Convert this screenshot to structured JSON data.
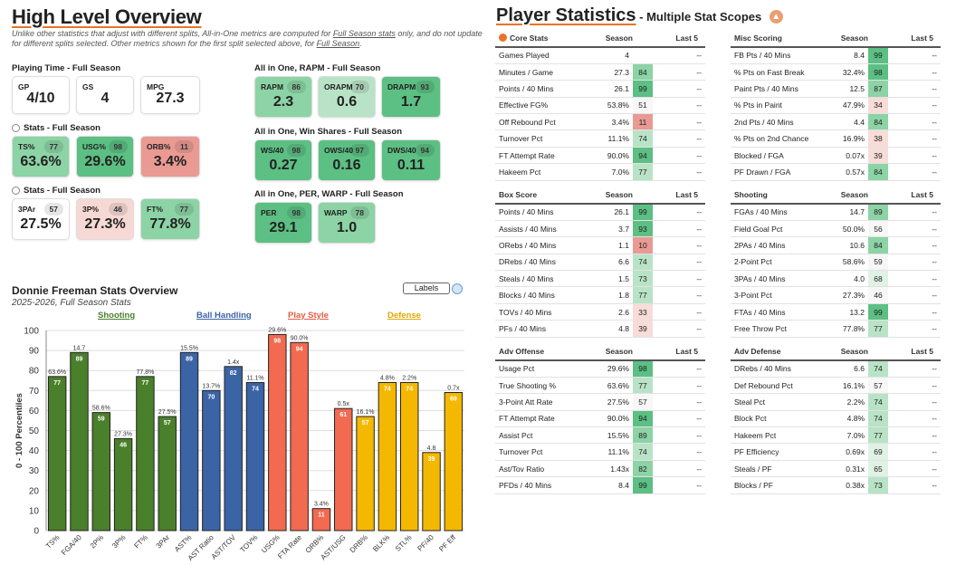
{
  "left": {
    "title": "High Level Overview",
    "note_a": "Unlike other statistics that adjust with different splits, All-in-One metrics are computed for ",
    "note_link1": "Full Season stats",
    "note_b": " only, and do not update",
    "note_c": "for different splits selected. Other metrics shown for the first split selected above, for ",
    "note_link2": "Full Season",
    "note_d": ".",
    "playing_time": {
      "title": "Playing Time - Full Season",
      "cards": [
        {
          "label": "GP",
          "value": "4/10"
        },
        {
          "label": "GS",
          "value": "4"
        },
        {
          "label": "MPG",
          "value": "27.3"
        }
      ]
    },
    "stats1": {
      "title": "Stats - Full Season",
      "cards": [
        {
          "label": "TS%",
          "pct": "77",
          "value": "63.6%"
        },
        {
          "label": "USG%",
          "pct": "98",
          "value": "29.6%"
        },
        {
          "label": "ORB%",
          "pct": "11",
          "value": "3.4%"
        }
      ]
    },
    "stats2": {
      "title": "Stats - Full Season",
      "cards": [
        {
          "label": "3PAr",
          "pct": "57",
          "value": "27.5%"
        },
        {
          "label": "3P%",
          "pct": "46",
          "value": "27.3%"
        },
        {
          "label": "FT%",
          "pct": "77",
          "value": "77.8%"
        }
      ]
    },
    "rapm": {
      "title": "All in One, RAPM - Full Season",
      "cards": [
        {
          "label": "RAPM",
          "pct": "86",
          "value": "2.3"
        },
        {
          "label": "ORAPM",
          "pct": "70",
          "value": "0.6"
        },
        {
          "label": "DRAPM",
          "pct": "93",
          "value": "1.7"
        }
      ]
    },
    "ws": {
      "title": "All in One, Win Shares - Full Season",
      "cards": [
        {
          "label": "WS/40",
          "pct": "98",
          "value": "0.27"
        },
        {
          "label": "OWS/40",
          "pct": "97",
          "value": "0.16"
        },
        {
          "label": "DWS/40",
          "pct": "94",
          "value": "0.11"
        }
      ]
    },
    "per": {
      "title": "All in One, PER, WARP - Full Season",
      "cards": [
        {
          "label": "PER",
          "pct": "98",
          "value": "29.1"
        },
        {
          "label": "WARP",
          "pct": "78",
          "value": "1.0"
        }
      ]
    }
  },
  "chart_header": {
    "title": "Donnie Freeman Stats Overview",
    "subtitle": "2025-2026, Full Season Stats",
    "labels_button": "Labels",
    "legend": [
      "Shooting",
      "Ball Handling",
      "Play Style",
      "Defense"
    ]
  },
  "chart_data": {
    "type": "bar",
    "title": "Donnie Freeman Stats Overview",
    "ylabel": "0 - 100 Percentiles",
    "ylim": [
      0,
      100
    ],
    "yticks": [
      "0",
      "10",
      "20",
      "30",
      "40",
      "50",
      "60",
      "70",
      "80",
      "90",
      "100"
    ],
    "categories": [
      "TS%",
      "FGA/40",
      "2P%",
      "3P%",
      "FT%",
      "3PAr",
      "AST%",
      "AST Ratio",
      "AST/TOV",
      "TOV%",
      "USG%",
      "FTA Rate",
      "ORB%",
      "AST/USG",
      "DRB%",
      "BLK%",
      "STL%",
      "PF/40",
      "PF Eff"
    ],
    "values": [
      77,
      89,
      59,
      46,
      77,
      57,
      89,
      70,
      82,
      74,
      98,
      94,
      11,
      61,
      57,
      74,
      74,
      39,
      69
    ],
    "raw_labels": [
      "63.6%",
      "14.7",
      "58.6%",
      "27.3%",
      "77.8%",
      "27.5%",
      "15.5%",
      "13.7%",
      "1.4x",
      "11.1%",
      "29.6%",
      "90.0%",
      "3.4%",
      "0.5x",
      "16.1%",
      "4.8%",
      "2.2%",
      "4.8",
      "0.7x"
    ],
    "groups": [
      "Shooting",
      "Shooting",
      "Shooting",
      "Shooting",
      "Shooting",
      "Shooting",
      "Ball Handling",
      "Ball Handling",
      "Ball Handling",
      "Ball Handling",
      "Play Style",
      "Play Style",
      "Play Style",
      "Play Style",
      "Defense",
      "Defense",
      "Defense",
      "Defense",
      "Defense"
    ],
    "colors": {
      "Shooting": "#4a7f2b",
      "Ball Handling": "#3b64a6",
      "Play Style": "#f26a4f",
      "Defense": "#f5b800"
    }
  },
  "right": {
    "title": "Player Statistics",
    "subtitle": " - Multiple Stat Scopes",
    "tables": [
      {
        "name": "Core Stats",
        "h2": "Season",
        "h3": "Last 5",
        "rows": [
          [
            "Games Played",
            "4",
            "",
            "--"
          ],
          [
            "Minutes / Game",
            "27.3",
            "84",
            "--"
          ],
          [
            "Points / 40 Mins",
            "26.1",
            "99",
            "--"
          ],
          [
            "Effective FG%",
            "53.8%",
            "51",
            "--"
          ],
          [
            "Off Rebound Pct",
            "3.4%",
            "11",
            "--"
          ],
          [
            "Turnover Pct",
            "11.1%",
            "74",
            "--"
          ],
          [
            "FT Attempt Rate",
            "90.0%",
            "94",
            "--"
          ],
          [
            "Hakeem Pct",
            "7.0%",
            "77",
            "--"
          ]
        ]
      },
      {
        "name": "Misc Scoring",
        "h2": "Season",
        "h3": "Last 5",
        "rows": [
          [
            "FB Pts / 40 Mins",
            "8.4",
            "99",
            "--"
          ],
          [
            "% Pts on Fast Break",
            "32.4%",
            "98",
            "--"
          ],
          [
            "Paint Pts / 40 Mins",
            "12.5",
            "87",
            "--"
          ],
          [
            "% Pts in Paint",
            "47.9%",
            "34",
            "--"
          ],
          [
            "2nd Pts / 40 Mins",
            "4.4",
            "84",
            "--"
          ],
          [
            "% Pts on 2nd Chance",
            "16.9%",
            "38",
            "--"
          ],
          [
            "Blocked / FGA",
            "0.07x",
            "39",
            "--"
          ],
          [
            "PF Drawn / FGA",
            "0.57x",
            "84",
            "--"
          ]
        ]
      },
      {
        "name": "Box Score",
        "h2": "Season",
        "h3": "Last 5",
        "rows": [
          [
            "Points / 40 Mins",
            "26.1",
            "99",
            "--"
          ],
          [
            "Assists / 40 Mins",
            "3.7",
            "93",
            "--"
          ],
          [
            "ORebs / 40 Mins",
            "1.1",
            "10",
            "--"
          ],
          [
            "DRebs / 40 Mins",
            "6.6",
            "74",
            "--"
          ],
          [
            "Steals / 40 Mins",
            "1.5",
            "73",
            "--"
          ],
          [
            "Blocks / 40 Mins",
            "1.8",
            "77",
            "--"
          ],
          [
            "TOVs / 40 Mins",
            "2.6",
            "33",
            "--"
          ],
          [
            "PFs / 40 Mins",
            "4.8",
            "39",
            "--"
          ]
        ]
      },
      {
        "name": "Shooting",
        "h2": "Season",
        "h3": "Last 5",
        "rows": [
          [
            "FGAs / 40 Mins",
            "14.7",
            "89",
            "--"
          ],
          [
            "Field Goal Pct",
            "50.0%",
            "56",
            "--"
          ],
          [
            "2PAs / 40 Mins",
            "10.6",
            "84",
            "--"
          ],
          [
            "2-Point Pct",
            "58.6%",
            "59",
            "--"
          ],
          [
            "3PAs / 40 Mins",
            "4.0",
            "68",
            "--"
          ],
          [
            "3-Point Pct",
            "27.3%",
            "46",
            "--"
          ],
          [
            "FTAs / 40 Mins",
            "13.2",
            "99",
            "--"
          ],
          [
            "Free Throw Pct",
            "77.8%",
            "77",
            "--"
          ]
        ]
      },
      {
        "name": "Adv Offense",
        "h2": "Season",
        "h3": "Last 5",
        "rows": [
          [
            "Usage Pct",
            "29.6%",
            "98",
            "--"
          ],
          [
            "True Shooting %",
            "63.6%",
            "77",
            "--"
          ],
          [
            "3-Point Att Rate",
            "27.5%",
            "57",
            "--"
          ],
          [
            "FT Attempt Rate",
            "90.0%",
            "94",
            "--"
          ],
          [
            "Assist Pct",
            "15.5%",
            "89",
            "--"
          ],
          [
            "Turnover Pct",
            "11.1%",
            "74",
            "--"
          ],
          [
            "Ast/Tov Ratio",
            "1.43x",
            "82",
            "--"
          ],
          [
            "PFDs / 40 Mins",
            "8.4",
            "99",
            "--"
          ]
        ]
      },
      {
        "name": "Adv Defense",
        "h2": "Season",
        "h3": "Last 5",
        "rows": [
          [
            "DRebs / 40 Mins",
            "6.6",
            "74",
            "--"
          ],
          [
            "Def Rebound Pct",
            "16.1%",
            "57",
            "--"
          ],
          [
            "Steal Pct",
            "2.2%",
            "74",
            "--"
          ],
          [
            "Block Pct",
            "4.8%",
            "74",
            "--"
          ],
          [
            "Hakeem Pct",
            "7.0%",
            "77",
            "--"
          ],
          [
            "PF Efficiency",
            "0.69x",
            "69",
            "--"
          ],
          [
            "Steals / PF",
            "0.31x",
            "65",
            "--"
          ],
          [
            "Blocks / PF",
            "0.38x",
            "73",
            "--"
          ]
        ]
      }
    ]
  }
}
